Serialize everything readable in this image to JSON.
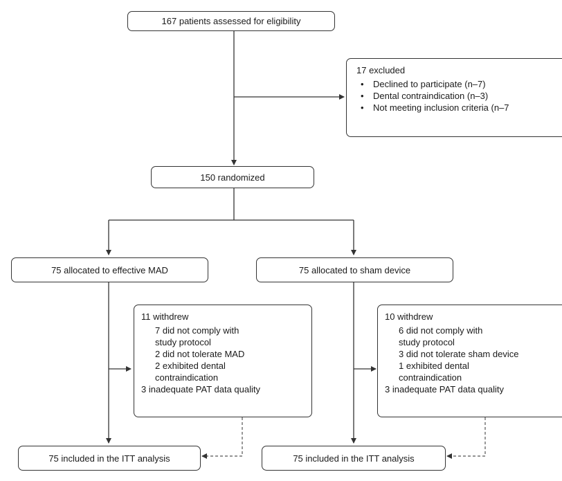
{
  "screening": {
    "assessed": "167 patients assessed for eligibility"
  },
  "exclusion": {
    "title": "17 excluded",
    "reasons": [
      "Declined to participate (n–7)",
      "Dental contraindication (n–3)",
      "Not meeting inclusion criteria (n–7"
    ]
  },
  "randomization": {
    "label": "150 randomized"
  },
  "arms": [
    {
      "allocated": "75 allocated to effective MAD",
      "withdrew_title": "11 withdrew",
      "reasons": [
        "7 did not comply with",
        "study protocol",
        "2 did not tolerate MAD",
        "2 exhibited dental",
        "contraindication",
        "3 inadequate PAT data quality"
      ],
      "analysis": "75 included in the ITT analysis"
    },
    {
      "allocated": "75 allocated to sham device",
      "withdrew_title": "10 withdrew",
      "reasons": [
        "6 did not comply with",
        "study protocol",
        "3 did not tolerate sham device",
        "1 exhibited dental",
        "contraindication",
        "3 inadequate PAT data quality"
      ],
      "analysis": "75 included in the ITT analysis"
    }
  ]
}
